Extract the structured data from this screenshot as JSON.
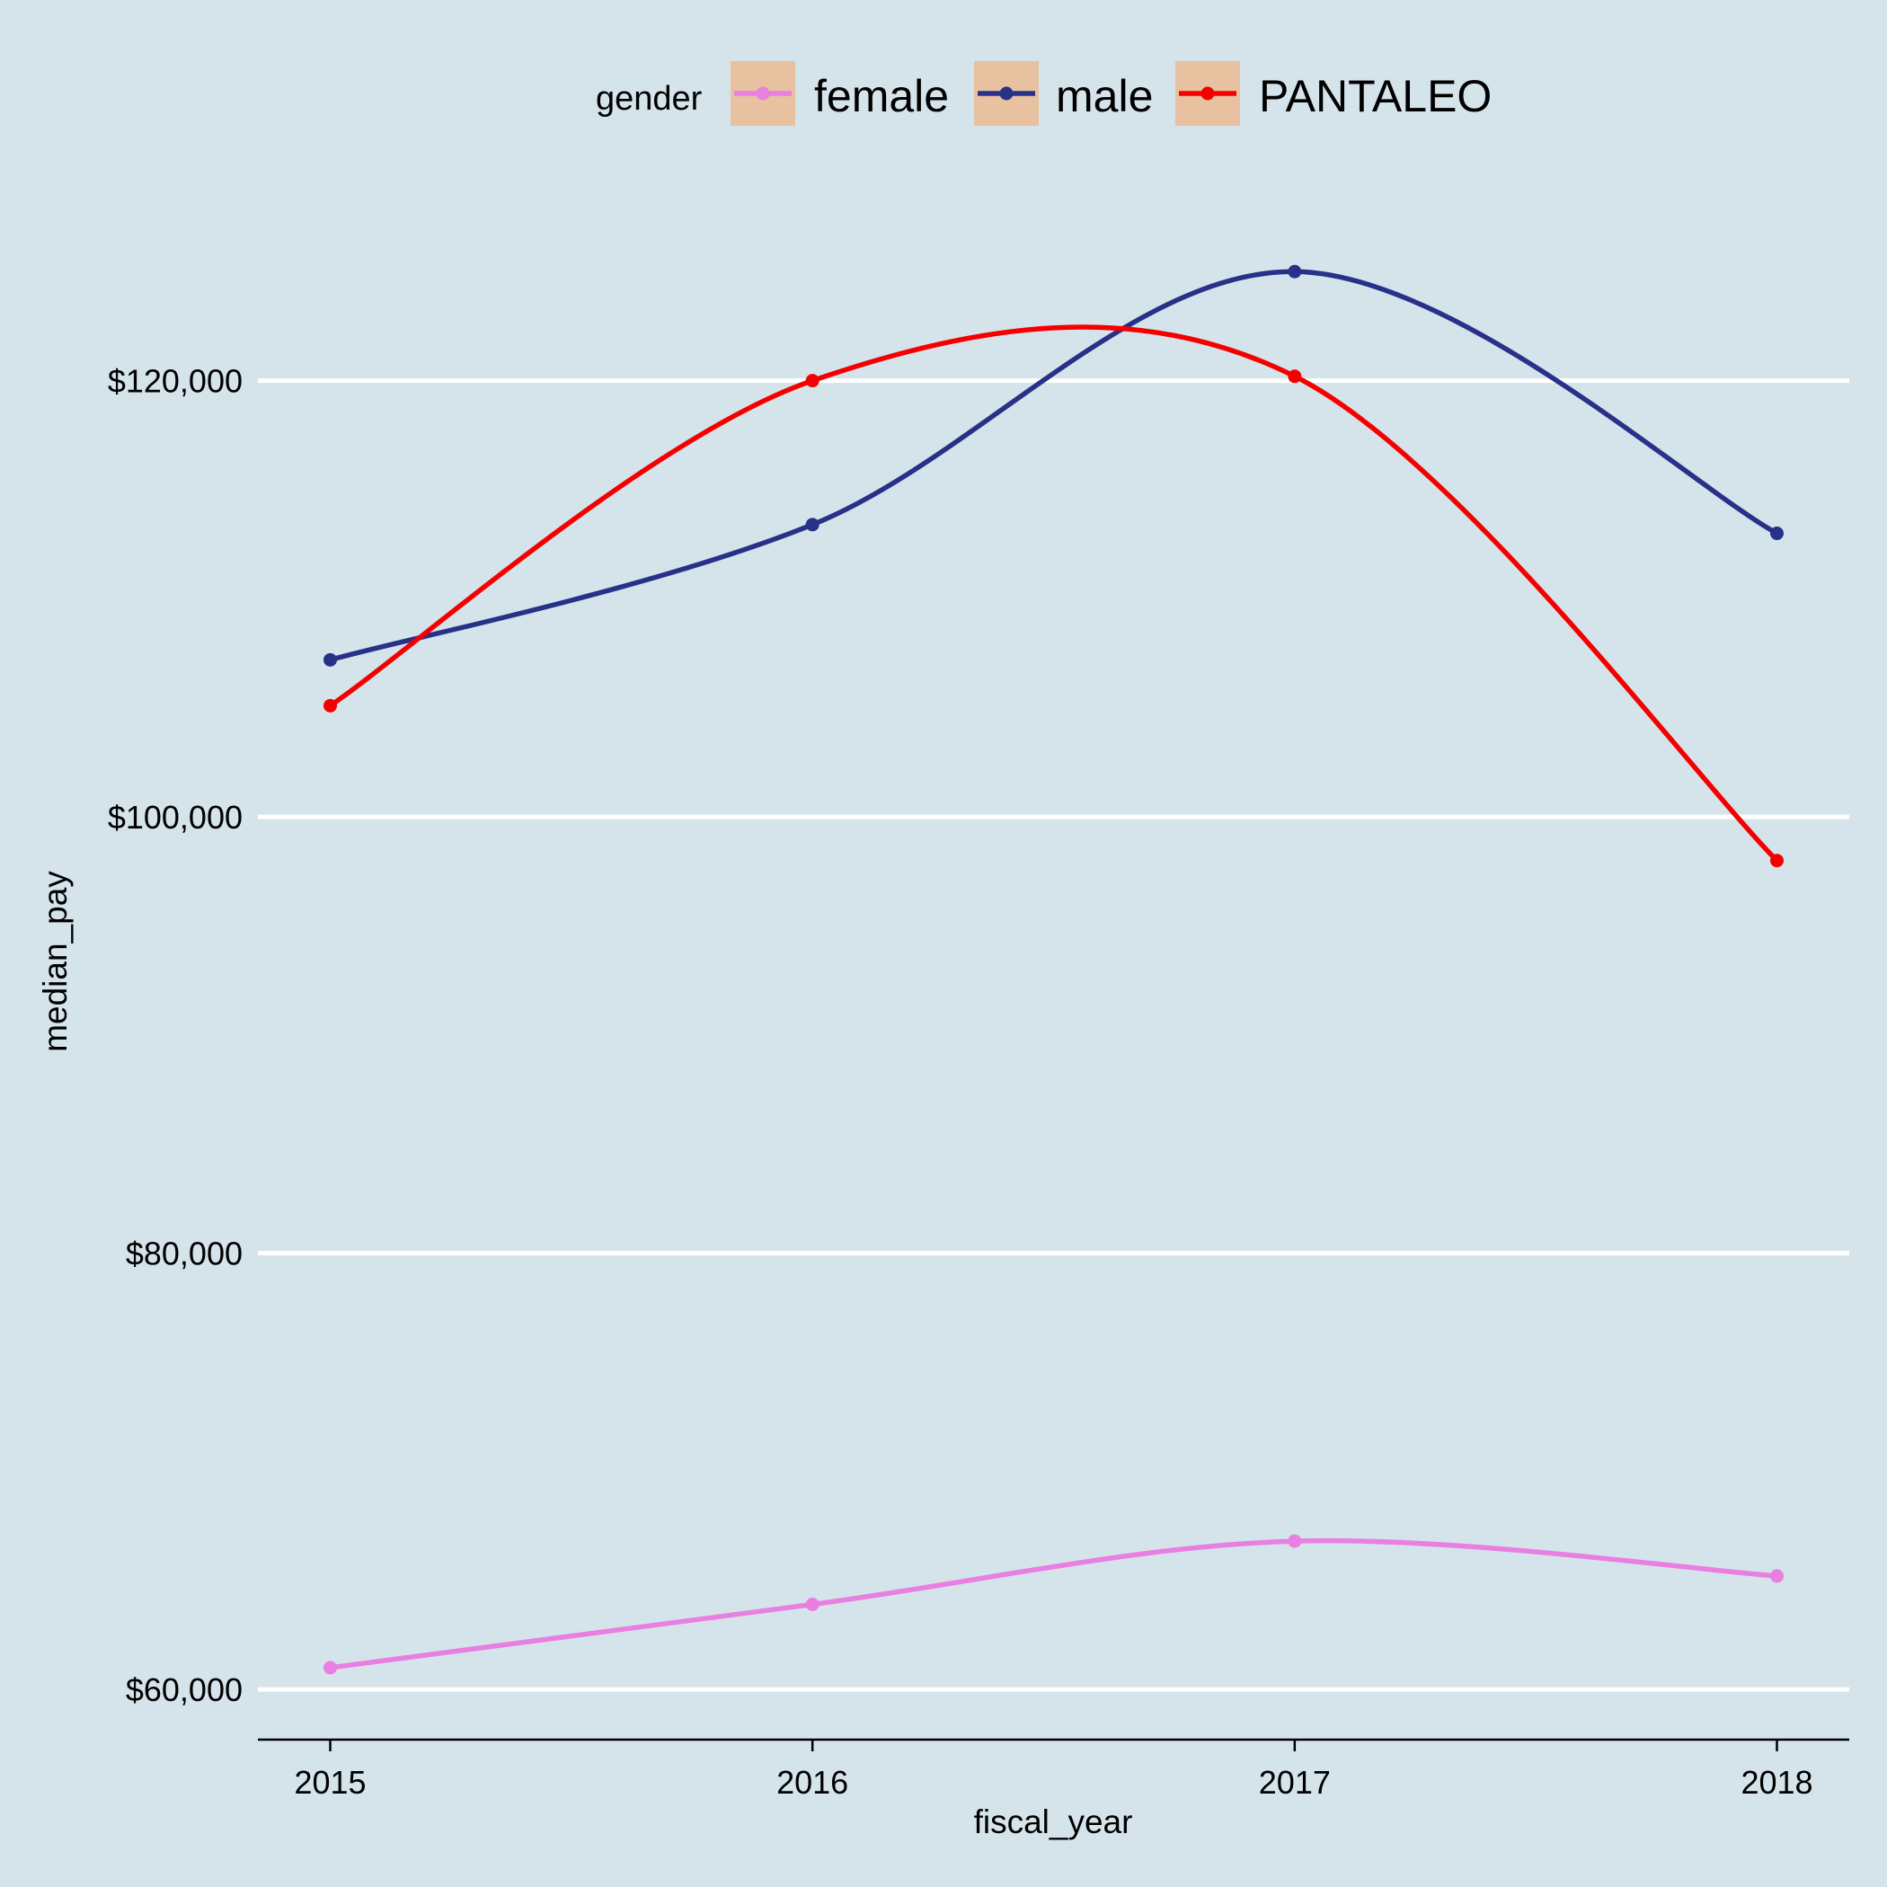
{
  "chart_data": {
    "type": "line",
    "smoothed": true,
    "xlabel": "fiscal_year",
    "ylabel": "median_pay",
    "x": [
      2015,
      2016,
      2017,
      2018
    ],
    "x_tick_labels": [
      "2015",
      "2016",
      "2017",
      "2018"
    ],
    "y_ticks": [
      60000,
      80000,
      100000,
      120000
    ],
    "y_tick_labels": [
      "$60,000",
      "$80,000",
      "$100,000",
      "$120,000"
    ],
    "ylim": [
      57700,
      128800
    ],
    "xlim": [
      2014.85,
      2018.15
    ],
    "legend": {
      "title": "gender",
      "position": "top"
    },
    "series": [
      {
        "name": "female",
        "color": "#e97fe0",
        "values": [
          61000,
          63900,
          66800,
          65200
        ]
      },
      {
        "name": "male",
        "color": "#283188",
        "values": [
          107200,
          113400,
          125000,
          113000
        ]
      },
      {
        "name": "PANTALEO",
        "color": "#f50000",
        "values": [
          105100,
          120000,
          120200,
          98000
        ]
      }
    ],
    "background_color": "#d5e4eb",
    "grid_color": "#ffffff",
    "legend_key_color": "#e7c1a0"
  }
}
